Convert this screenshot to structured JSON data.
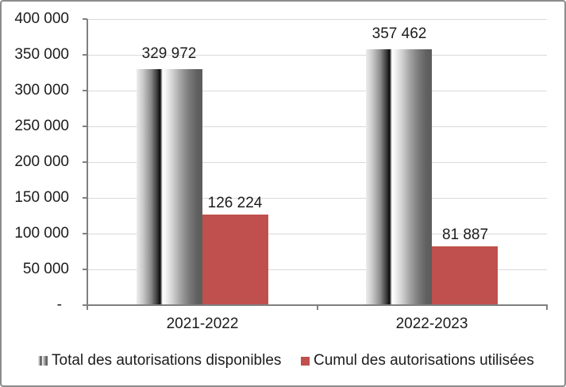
{
  "chart_data": {
    "type": "bar",
    "categories": [
      "2021-2022",
      "2022-2023"
    ],
    "series": [
      {
        "name": "Total des autorisations disponibles",
        "values": [
          329972,
          357462
        ],
        "data_labels": [
          "329 972",
          "357 462"
        ],
        "fill": "gray-pipe-gradient"
      },
      {
        "name": "Cumul des autorisations utilisées",
        "values": [
          126224,
          81887
        ],
        "data_labels": [
          "126 224",
          "81 887"
        ],
        "fill": "#C0504D"
      }
    ],
    "title": "",
    "xlabel": "",
    "ylabel": "",
    "ylim": [
      0,
      400000
    ],
    "ytick_step": 50000,
    "ytick_labels": [
      "400 000",
      "350 000",
      "300 000",
      "250 000",
      "200 000",
      "150 000",
      "100 000",
      "50 000",
      "-"
    ],
    "grid": true,
    "legend_position": "bottom"
  },
  "colors": {
    "series_red": "#C0504D",
    "axis_line": "#808080",
    "gridline": "#D9D9D9",
    "chart_border": "#8C8C8C",
    "text": "#1C1C1C",
    "background": "#FFFFFF"
  }
}
